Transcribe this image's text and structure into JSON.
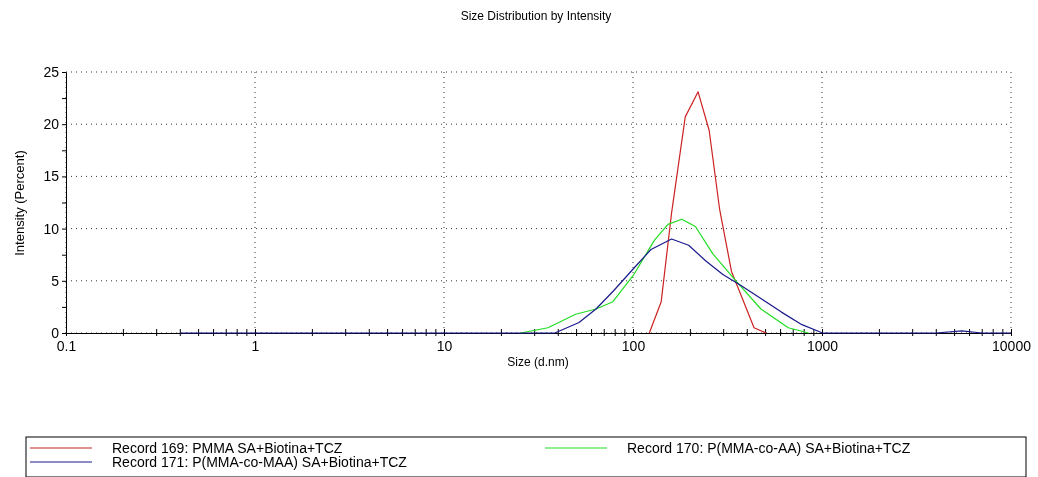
{
  "chart_data": {
    "type": "line",
    "title": "Size Distribution by Intensity",
    "xlabel": "Size (d.nm)",
    "ylabel": "Intensity (Percent)",
    "log": "x",
    "grid": true,
    "legend": "bottom",
    "marker": "none",
    "line_style": "solid",
    "xlim": [
      0.1,
      10000
    ],
    "xticks": [
      0.1,
      {
        "value": 0.2,
        "label": null
      },
      {
        "value": 0.3,
        "label": null
      },
      {
        "value": 0.4,
        "label": null
      },
      {
        "value": 0.5,
        "label": null
      },
      {
        "value": 0.6,
        "label": null
      },
      {
        "value": 0.7,
        "label": null
      },
      {
        "value": 0.8,
        "label": null
      },
      {
        "value": 0.9,
        "label": null
      },
      1,
      {
        "value": 2,
        "label": null
      },
      {
        "value": 3,
        "label": null
      },
      {
        "value": 4,
        "label": null
      },
      {
        "value": 5,
        "label": null
      },
      {
        "value": 6,
        "label": null
      },
      {
        "value": 7,
        "label": null
      },
      {
        "value": 8,
        "label": null
      },
      {
        "value": 9,
        "label": null
      },
      10,
      {
        "value": 20,
        "label": null
      },
      {
        "value": 30,
        "label": null
      },
      {
        "value": 40,
        "label": null
      },
      {
        "value": 50,
        "label": null
      },
      {
        "value": 60,
        "label": null
      },
      {
        "value": 70,
        "label": null
      },
      {
        "value": 80,
        "label": null
      },
      {
        "value": 90,
        "label": null
      },
      100,
      {
        "value": 200,
        "label": null
      },
      {
        "value": 300,
        "label": null
      },
      {
        "value": 400,
        "label": null
      },
      {
        "value": 500,
        "label": null
      },
      {
        "value": 600,
        "label": null
      },
      {
        "value": 700,
        "label": null
      },
      {
        "value": 800,
        "label": null
      },
      {
        "value": 900,
        "label": null
      },
      1000,
      {
        "value": 2000,
        "label": null
      },
      {
        "value": 3000,
        "label": null
      },
      {
        "value": 4000,
        "label": null
      },
      {
        "value": 5000,
        "label": null
      },
      {
        "value": 6000,
        "label": null
      },
      {
        "value": 7000,
        "label": null
      },
      {
        "value": 8000,
        "label": null
      },
      {
        "value": 9000,
        "label": null
      },
      10000
    ],
    "ylim": [
      0,
      25
    ],
    "yticks": [
      0,
      {
        "value": 2.5,
        "label": null
      },
      5,
      {
        "value": 7.5,
        "label": null
      },
      10,
      {
        "value": 12.5,
        "label": null
      },
      15,
      {
        "value": 17.5,
        "label": null
      },
      20,
      {
        "value": 22.5,
        "label": null
      },
      25
    ],
    "series": [
      {
        "name": "Record 169: PMMA SA+Biotina+TCZ",
        "color": "#cc2222",
        "x": [
          122,
          141,
          160,
          189,
          221,
          253,
          287,
          332,
          385,
          437,
          506
        ],
        "values": [
          0,
          3.0,
          11.5,
          20.7,
          23.1,
          19.4,
          11.9,
          5.9,
          3.0,
          0.5,
          0
        ]
      },
      {
        "name": "Record 170: P(MMA-co-AA) SA+Biotina+TCZ",
        "color": "#22dd22",
        "x": [
          25.4,
          35.5,
          49.7,
          63.7,
          78.3,
          101,
          130,
          153,
          181,
          214,
          264,
          354,
          475,
          663,
          851
        ],
        "values": [
          0,
          0.5,
          1.8,
          2.3,
          3.0,
          5.6,
          8.9,
          10.4,
          10.9,
          10.2,
          7.6,
          4.9,
          2.3,
          0.5,
          0
        ]
      },
      {
        "name": "Record 171: P(MMA-co-MAA) SA+Biotina+TCZ",
        "color": "#1a1a8c",
        "x": [
          0.4,
          38.6,
          51.8,
          63.7,
          78.5,
          101,
          124.5,
          160,
          197,
          243,
          299,
          369,
          475,
          610,
          783,
          1007,
          4000,
          5500,
          7000,
          10000
        ],
        "values": [
          0,
          0,
          1.0,
          2.3,
          4.0,
          6.2,
          8.0,
          9.0,
          8.4,
          6.9,
          5.6,
          4.6,
          3.3,
          2.0,
          0.8,
          0,
          0,
          0.2,
          0,
          0
        ]
      }
    ]
  }
}
